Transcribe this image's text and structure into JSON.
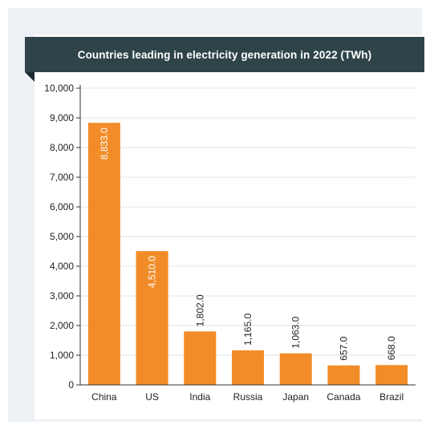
{
  "chart_data": {
    "type": "bar",
    "title": "Countries leading in electricity generation in 2022 (TWh)",
    "categories": [
      "China",
      "US",
      "India",
      "Russia",
      "Japan",
      "Canada",
      "Brazil"
    ],
    "values": [
      8833.0,
      4510.0,
      1802.0,
      1165.0,
      1063.0,
      657.0,
      668.0
    ],
    "value_labels": [
      "8,833.0",
      "4,510.0",
      "1,802.0",
      "1,165.0",
      "1,063.0",
      "657.0",
      "668.0"
    ],
    "ylim": [
      0,
      10000
    ],
    "yticks": [
      "0",
      "1,000",
      "2,000",
      "3,000",
      "4,000",
      "5,000",
      "6,000",
      "7,000",
      "8,000",
      "9,000",
      "10,000"
    ],
    "xlabel": "",
    "ylabel": "",
    "grid": true,
    "bar_color": "#f28c28",
    "label_color_inside": "#ffffff",
    "label_color_outside": "#222222"
  }
}
